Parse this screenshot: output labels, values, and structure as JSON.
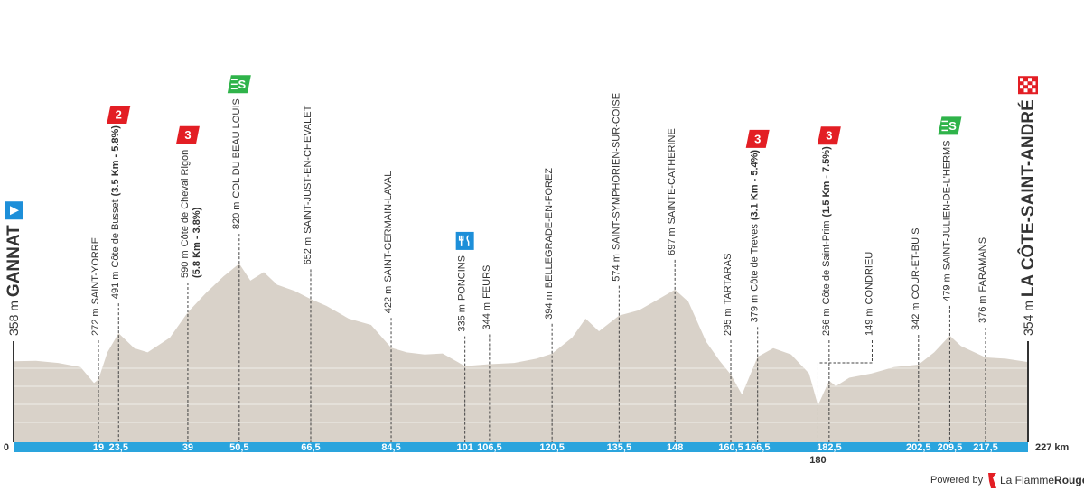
{
  "chart_data": {
    "type": "area",
    "color": "#d9d2c9",
    "xlim": [
      0,
      227
    ],
    "ylim": [
      0,
      1000
    ],
    "x": [
      0,
      5,
      10,
      15,
      18,
      19,
      21,
      23.5,
      27,
      30,
      35,
      39,
      43,
      47,
      50.5,
      53,
      56,
      59,
      63,
      66.5,
      70,
      75,
      80,
      84.5,
      88,
      92,
      96,
      101,
      106.5,
      112,
      117,
      120.5,
      125,
      128,
      131,
      135.5,
      140,
      145,
      148,
      151,
      155,
      158,
      160.5,
      163,
      166.5,
      170,
      174,
      178,
      180,
      182.5,
      184,
      187,
      192,
      197,
      202.5,
      206,
      209.5,
      212,
      217.5,
      222,
      227
    ],
    "values": [
      358,
      360,
      350,
      330,
      255,
      272,
      400,
      491,
      420,
      400,
      470,
      590,
      680,
      760,
      820,
      740,
      780,
      720,
      690,
      652,
      620,
      560,
      530,
      422,
      400,
      390,
      395,
      335,
      344,
      350,
      370,
      394,
      470,
      560,
      500,
      574,
      600,
      660,
      697,
      640,
      450,
      360,
      295,
      200,
      379,
      420,
      390,
      300,
      149,
      266,
      240,
      280,
      300,
      330,
      342,
      400,
      479,
      430,
      376,
      370,
      354
    ],
    "start": {
      "km": 0,
      "elevation": {
        "value": 358,
        "label": "358 m"
      },
      "name": "GANNAT",
      "badge": {
        "type": "start",
        "color": "#1d8fd9"
      }
    },
    "finish": {
      "km": {
        "value": 227,
        "label": "227 km"
      },
      "elevation": {
        "value": 354,
        "label": "354 m"
      },
      "name": "LA CÔTE-SAINT-ANDRÉ",
      "badge": {
        "type": "finish",
        "color": "#e31e24"
      }
    },
    "waypoints": [
      {
        "km": 19,
        "elevation": {
          "value": 272,
          "label": "272 m"
        },
        "name": "SAINT-YORRE"
      },
      {
        "km": {
          "value": 23.5,
          "label": "23,5"
        },
        "elevation": {
          "value": 491,
          "label": "491 m"
        },
        "name": "Côte de Busset",
        "detail": "(3.5 Km - 5.8%)",
        "badge": {
          "type": "climb",
          "text": "2",
          "color": "#e31e24"
        }
      },
      {
        "km": 39,
        "elevation": {
          "value": 590,
          "label": "590 m"
        },
        "name": "Côte de Cheval Rigon",
        "detail": "(5.8 Km - 3.8%)",
        "badge": {
          "type": "climb",
          "text": "3",
          "color": "#e31e24"
        }
      },
      {
        "km": {
          "value": 50.5,
          "label": "50,5"
        },
        "elevation": {
          "value": 820,
          "label": "820 m"
        },
        "name": "COL DU BEAU LOUIS",
        "badge": {
          "type": "sprint",
          "text": "S",
          "color": "#2fb34a"
        }
      },
      {
        "km": {
          "value": 66.5,
          "label": "66,5"
        },
        "elevation": {
          "value": 652,
          "label": "652 m"
        },
        "name": "SAINT-JUST-EN-CHEVALET"
      },
      {
        "km": {
          "value": 84.5,
          "label": "84,5"
        },
        "elevation": {
          "value": 422,
          "label": "422 m"
        },
        "name": "SAINT-GERMAIN-LAVAL"
      },
      {
        "km": 101,
        "elevation": {
          "value": 335,
          "label": "335 m"
        },
        "name": "PONCINS",
        "badge": {
          "type": "feed",
          "color": "#1d8fd9"
        }
      },
      {
        "km": {
          "value": 106.5,
          "label": "106,5"
        },
        "elevation": {
          "value": 344,
          "label": "344 m"
        },
        "name": "FEURS"
      },
      {
        "km": {
          "value": 120.5,
          "label": "120,5"
        },
        "elevation": {
          "value": 394,
          "label": "394 m"
        },
        "name": "BELLEGRADE-EN-FOREZ"
      },
      {
        "km": {
          "value": 135.5,
          "label": "135,5"
        },
        "elevation": {
          "value": 574,
          "label": "574 m"
        },
        "name": "SAINT-SYMPHORIEN-SUR-COISE"
      },
      {
        "km": 148,
        "elevation": {
          "value": 697,
          "label": "697 m"
        },
        "name": "SAINTE-CATHERINE"
      },
      {
        "km": {
          "value": 160.5,
          "label": "160,5"
        },
        "elevation": {
          "value": 295,
          "label": "295 m"
        },
        "name": "TARTARAS"
      },
      {
        "km": {
          "value": 166.5,
          "label": "166,5"
        },
        "elevation": {
          "value": 379,
          "label": "379 m"
        },
        "name": "Côte de Treves",
        "detail": "(3.1 Km - 5.4%)",
        "badge": {
          "type": "climb",
          "text": "3",
          "color": "#e31e24"
        }
      },
      {
        "km": 180,
        "elevation": {
          "value": 149,
          "label": "149 m"
        },
        "name": "CONDRIEU"
      },
      {
        "km": {
          "value": 182.5,
          "label": "182,5"
        },
        "elevation": {
          "value": 266,
          "label": "266 m"
        },
        "name": "Côte de Saint-Prim",
        "detail": "(1.5 Km - 7.5%)",
        "badge": {
          "type": "climb",
          "text": "3",
          "color": "#e31e24"
        }
      },
      {
        "km": {
          "value": 202.5,
          "label": "202,5"
        },
        "elevation": {
          "value": 342,
          "label": "342 m"
        },
        "name": "COUR-ET-BUIS"
      },
      {
        "km": {
          "value": 209.5,
          "label": "209,5"
        },
        "elevation": {
          "value": 479,
          "label": "479 m"
        },
        "name": "SAINT-JULIEN-DE-L'HERMS",
        "badge": {
          "type": "sprint",
          "text": "S",
          "color": "#2fb34a"
        }
      },
      {
        "km": {
          "value": 217.5,
          "label": "217,5"
        },
        "elevation": {
          "value": 376,
          "label": "376 m"
        },
        "name": "FARAMANS"
      }
    ]
  },
  "footer": {
    "powered": "Powered by",
    "brand": "La Flamme",
    "brand_bold": "Rouge"
  }
}
